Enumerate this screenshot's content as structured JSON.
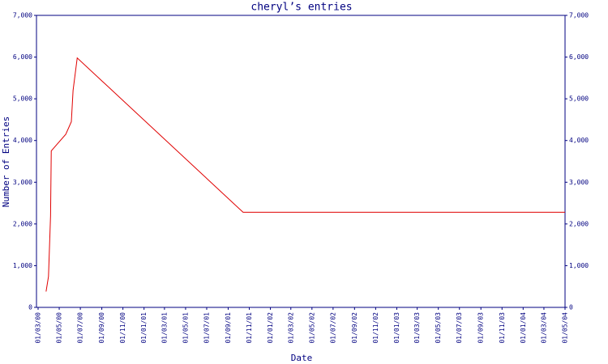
{
  "chart_data": {
    "type": "line",
    "title": "cheryl’s entries",
    "x_label": "Date",
    "y_label": "Number of Entries",
    "x": [
      "2000-03-24",
      "2000-03-31",
      "2000-04-06",
      "2000-04-08",
      "2000-05-20",
      "2000-06-05",
      "2000-06-10",
      "2000-06-22",
      "2001-10-14",
      "2004-05-01"
    ],
    "series": [
      {
        "name": "cheryl",
        "color": "#e00000",
        "values": [
          380,
          740,
          2200,
          3750,
          4150,
          4450,
          5200,
          5980,
          2280,
          2280
        ]
      }
    ],
    "xlim": [
      "2000-03-01",
      "2004-05-01"
    ],
    "xticks": [
      {
        "value": "2000-03-01",
        "label": "01/03/00"
      },
      {
        "value": "2000-05-01",
        "label": "01/05/00"
      },
      {
        "value": "2000-07-01",
        "label": "01/07/00"
      },
      {
        "value": "2000-09-01",
        "label": "01/09/00"
      },
      {
        "value": "2000-11-01",
        "label": "01/11/00"
      },
      {
        "value": "2001-01-01",
        "label": "01/01/01"
      },
      {
        "value": "2001-03-01",
        "label": "01/03/01"
      },
      {
        "value": "2001-05-01",
        "label": "01/05/01"
      },
      {
        "value": "2001-07-01",
        "label": "01/07/01"
      },
      {
        "value": "2001-09-01",
        "label": "01/09/01"
      },
      {
        "value": "2001-11-01",
        "label": "01/11/01"
      },
      {
        "value": "2002-01-01",
        "label": "01/01/02"
      },
      {
        "value": "2002-03-01",
        "label": "01/03/02"
      },
      {
        "value": "2002-05-01",
        "label": "01/05/02"
      },
      {
        "value": "2002-07-01",
        "label": "01/07/02"
      },
      {
        "value": "2002-09-01",
        "label": "01/09/02"
      },
      {
        "value": "2002-11-01",
        "label": "01/11/02"
      },
      {
        "value": "2003-01-01",
        "label": "01/01/03"
      },
      {
        "value": "2003-03-01",
        "label": "01/03/03"
      },
      {
        "value": "2003-05-01",
        "label": "01/05/03"
      },
      {
        "value": "2003-07-01",
        "label": "01/07/03"
      },
      {
        "value": "2003-09-01",
        "label": "01/09/03"
      },
      {
        "value": "2003-11-01",
        "label": "01/11/03"
      },
      {
        "value": "2004-01-01",
        "label": "01/01/04"
      },
      {
        "value": "2004-03-01",
        "label": "01/03/04"
      },
      {
        "value": "2004-05-01",
        "label": "01/05/04"
      }
    ],
    "ylim": [
      0,
      7000
    ],
    "yticks": [
      0,
      {
        "value": 1000,
        "label": "1,000"
      },
      {
        "value": 2000,
        "label": "2,000"
      },
      {
        "value": 3000,
        "label": "3,000"
      },
      {
        "value": 4000,
        "label": "4,000"
      },
      {
        "value": 5000,
        "label": "5,000"
      },
      {
        "value": 6000,
        "label": "6,000"
      },
      {
        "value": 7000,
        "label": "7,000"
      }
    ],
    "y2lim": [
      0,
      7000
    ],
    "y2ticks": [
      0,
      {
        "value": 1000,
        "label": "1,000"
      },
      {
        "value": 2000,
        "label": "2,000"
      },
      {
        "value": 3000,
        "label": "3,000"
      },
      {
        "value": 4000,
        "label": "4,000"
      },
      {
        "value": 5000,
        "label": "5,000"
      },
      {
        "value": 6000,
        "label": "6,000"
      },
      {
        "value": 7000,
        "label": "7,000"
      }
    ],
    "axis_color": "#000080"
  }
}
